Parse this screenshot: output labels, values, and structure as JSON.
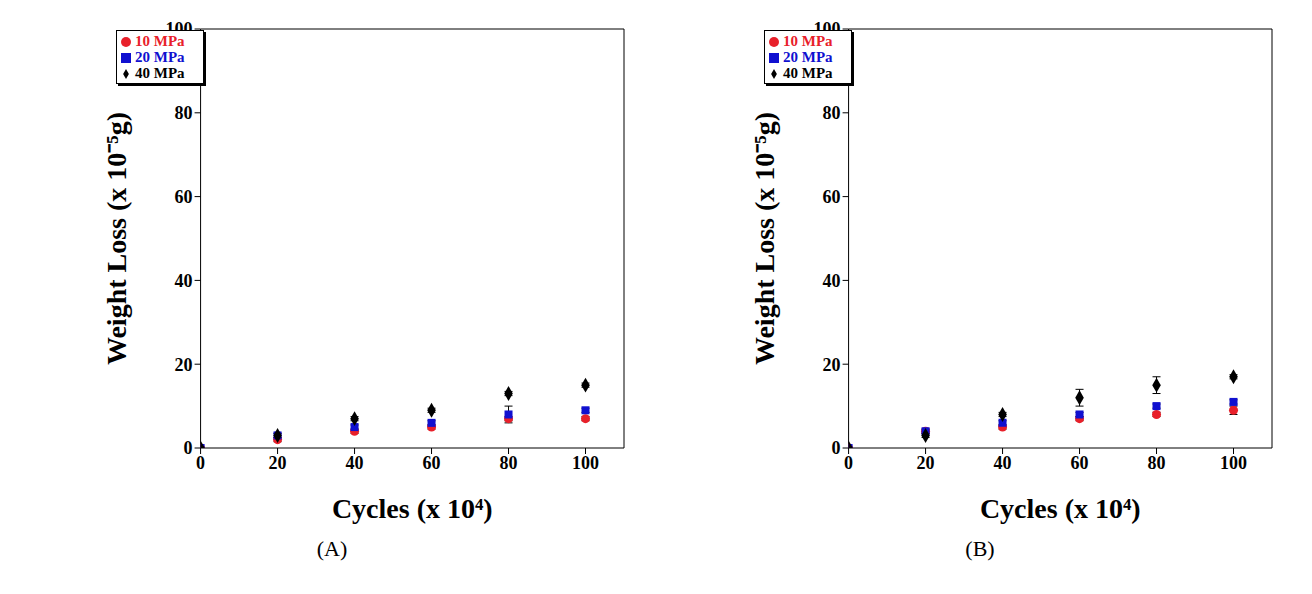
{
  "chart_data": [
    {
      "type": "scatter",
      "title": "(A)",
      "x_label": "Cycles (x 10⁴)",
      "y_label": "Weight Loss (x 10⁻⁵g)",
      "x": [
        0,
        20,
        40,
        60,
        80,
        100
      ],
      "xlim": [
        0,
        110
      ],
      "xticks": [
        0,
        20,
        40,
        60,
        80,
        100
      ],
      "ylim": [
        0,
        100
      ],
      "yticks": [
        0,
        20,
        40,
        60,
        80,
        100
      ],
      "legend": "upper left",
      "series": [
        {
          "name": "10 MPa",
          "color": "#e8202a",
          "marker": "circle",
          "values": [
            0,
            2,
            4,
            5,
            7,
            7
          ],
          "errors": [
            0,
            0.5,
            0.5,
            0.5,
            0.5,
            0.5
          ]
        },
        {
          "name": "20 MPa",
          "color": "#1010d0",
          "marker": "square",
          "values": [
            0,
            3,
            5,
            6,
            8,
            9
          ],
          "errors": [
            0,
            0.5,
            0.5,
            0.5,
            2,
            0.5
          ]
        },
        {
          "name": "40 MPa",
          "color": "#000000",
          "marker": "diamond",
          "values": [
            0,
            3,
            7,
            9,
            13,
            15
          ],
          "errors": [
            0,
            0.5,
            0.5,
            0.5,
            0.5,
            0.5
          ]
        }
      ]
    },
    {
      "type": "scatter",
      "title": "(B)",
      "x_label": "Cycles (x 10⁴)",
      "y_label": "Weight Loss (x 10⁻⁵g)",
      "x": [
        0,
        20,
        40,
        60,
        80,
        100
      ],
      "xlim": [
        0,
        110
      ],
      "xticks": [
        0,
        20,
        40,
        60,
        80,
        100
      ],
      "ylim": [
        0,
        100
      ],
      "yticks": [
        0,
        20,
        40,
        60,
        80,
        100
      ],
      "legend": "upper left",
      "series": [
        {
          "name": "10 MPa",
          "color": "#e8202a",
          "marker": "circle",
          "values": [
            0,
            4,
            5,
            7,
            8,
            9
          ],
          "errors": [
            0,
            0.5,
            0.5,
            0.5,
            0.5,
            1
          ]
        },
        {
          "name": "20 MPa",
          "color": "#1010d0",
          "marker": "square",
          "values": [
            0,
            4,
            6,
            8,
            10,
            11
          ],
          "errors": [
            0,
            0.5,
            0.5,
            0.5,
            0.5,
            0.5
          ]
        },
        {
          "name": "40 MPa",
          "color": "#000000",
          "marker": "diamond",
          "values": [
            0,
            3,
            8,
            12,
            15,
            17
          ],
          "errors": [
            0,
            0.5,
            0.5,
            2,
            2,
            0.5
          ]
        }
      ]
    }
  ]
}
